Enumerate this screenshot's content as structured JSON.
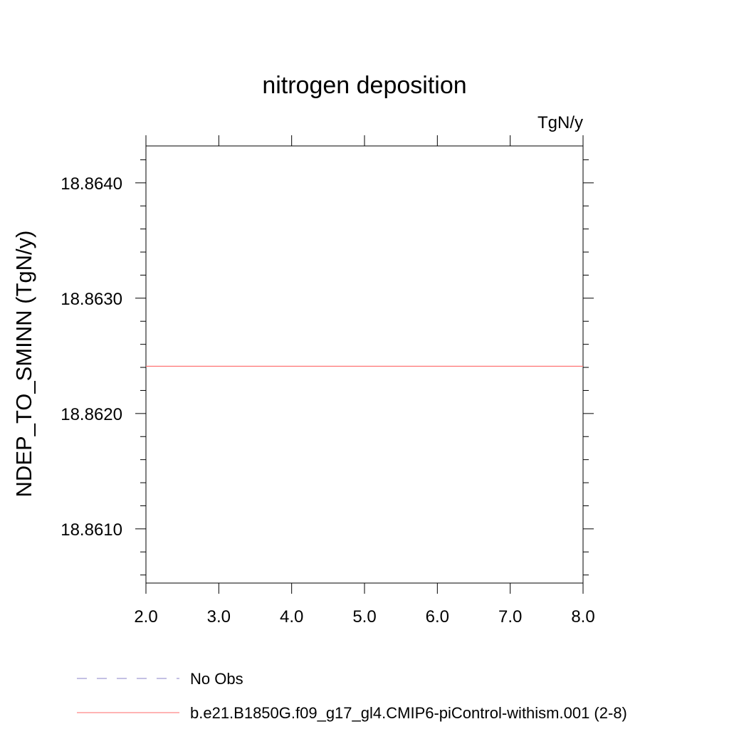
{
  "chart_data": {
    "type": "line",
    "title": "nitrogen deposition",
    "units_label": "TgN/y",
    "ylabel": "NDEP_TO_SMINN  (TgN/y)",
    "xlabel": "",
    "xlim": [
      2.0,
      8.0
    ],
    "ylim": [
      18.86053,
      18.86432
    ],
    "x_ticks": [
      2.0,
      3.0,
      4.0,
      5.0,
      6.0,
      7.0,
      8.0
    ],
    "x_tick_labels": [
      "2.0",
      "3.0",
      "4.0",
      "5.0",
      "6.0",
      "7.0",
      "8.0"
    ],
    "y_ticks": [
      18.861,
      18.862,
      18.863,
      18.864
    ],
    "y_tick_labels": [
      "18.8610",
      "18.8620",
      "18.8630",
      "18.8640"
    ],
    "y_minor_step": 0.0002,
    "grid": false,
    "legend_position": "bottom",
    "series": [
      {
        "name": "b.e21.B1850G.f09_g17_gl4.CMIP6-piControl-withism.001 (2-8)",
        "color": "#ff6a6a",
        "dash": "solid",
        "x": [
          2.0,
          3.0,
          4.0,
          5.0,
          6.0,
          7.0,
          8.0
        ],
        "y": [
          18.86241,
          18.86241,
          18.86241,
          18.86241,
          18.86241,
          18.86241,
          18.86241
        ]
      }
    ],
    "legend": [
      {
        "label": "No Obs",
        "color": "#8a82c8",
        "dash": "dashed"
      },
      {
        "label": "b.e21.B1850G.f09_g17_gl4.CMIP6-piControl-withism.001 (2-8)",
        "color": "#ff6a6a",
        "dash": "solid"
      }
    ]
  }
}
